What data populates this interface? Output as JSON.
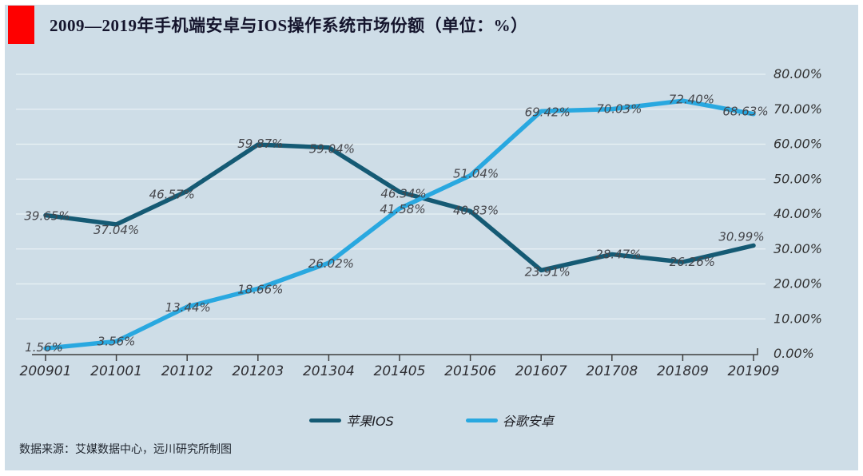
{
  "header": {
    "title": "2009—2019年手机端安卓与IOS操作系统市场份额（单位：%）",
    "accent_color": "#fe0000"
  },
  "footer": {
    "source": "数据来源：艾媒数据中心，远川研究所制图"
  },
  "chart_data": {
    "type": "line",
    "title": "2009—2019年手机端安卓与IOS操作系统市场份额（单位：%）",
    "categories": [
      "200901",
      "201001",
      "201102",
      "201203",
      "201304",
      "201405",
      "201506",
      "201607",
      "201708",
      "201809",
      "201909"
    ],
    "series": [
      {
        "name": "苹果IOS",
        "color": "#155a74",
        "values": [
          39.65,
          37.04,
          46.57,
          59.87,
          59.04,
          46.34,
          40.83,
          23.91,
          28.47,
          26.26,
          30.99
        ]
      },
      {
        "name": "谷歌安卓",
        "color": "#29a8e0",
        "values": [
          1.56,
          3.56,
          13.44,
          18.66,
          26.02,
          41.58,
          51.04,
          69.42,
          70.03,
          72.4,
          68.63
        ]
      }
    ],
    "xlabel": "",
    "ylabel": "",
    "y_axis": {
      "min": 0,
      "max": 80,
      "step": 10,
      "position": "right",
      "tick_labels": [
        "0.00%",
        "10.00%",
        "20.00%",
        "30.00%",
        "40.00%",
        "50.00%",
        "60.00%",
        "70.00%",
        "80.00%"
      ]
    },
    "grid": true,
    "legend_position": "bottom",
    "data_label_suffix": "%"
  }
}
